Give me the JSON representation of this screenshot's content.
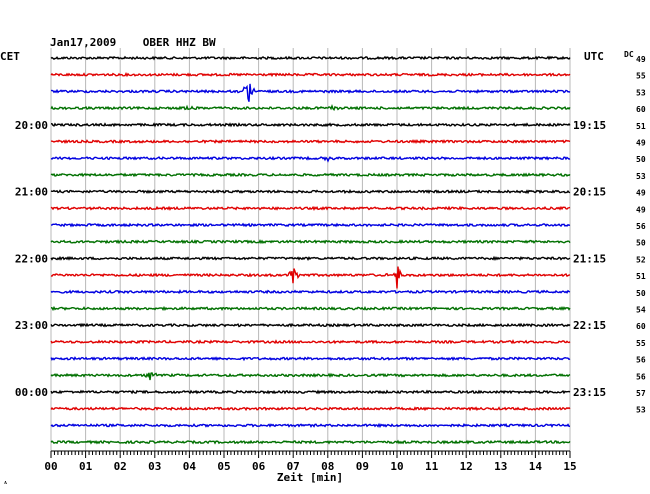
{
  "header": {
    "title": "Jan17,2009    OBER HHZ BW",
    "left_zone": "CET",
    "right_zone": "UTC",
    "dc_label": "DC"
  },
  "chart_data": {
    "type": "line",
    "title": "Jan17,2009    OBER HHZ BW",
    "xlabel": "Zeit [min]",
    "ylabel": "",
    "xlim": [
      0,
      15
    ],
    "x_ticks": [
      "00",
      "01",
      "02",
      "03",
      "04",
      "05",
      "06",
      "07",
      "08",
      "09",
      "10",
      "11",
      "12",
      "13",
      "14",
      "15"
    ],
    "trace_count": 24,
    "trace_colors": [
      "#000000",
      "#e00000",
      "#0000e0",
      "#007000"
    ],
    "left_time_labels": [
      {
        "trace": 4,
        "label": "20:00"
      },
      {
        "trace": 8,
        "label": "21:00"
      },
      {
        "trace": 12,
        "label": "22:00"
      },
      {
        "trace": 16,
        "label": "23:00"
      },
      {
        "trace": 20,
        "label": "00:00"
      }
    ],
    "right_time_labels": [
      {
        "trace": 4,
        "label": "19:15"
      },
      {
        "trace": 8,
        "label": "20:15"
      },
      {
        "trace": 12,
        "label": "21:15"
      },
      {
        "trace": 16,
        "label": "22:15"
      },
      {
        "trace": 20,
        "label": "23:15"
      }
    ],
    "dc_values": [
      "49",
      "55",
      "53",
      "60",
      "51",
      "49",
      "50",
      "53",
      "49",
      "49",
      "56",
      "50",
      "52",
      "51",
      "50",
      "54",
      "60",
      "55",
      "56",
      "56",
      "57",
      "53"
    ],
    "events": [
      {
        "trace": 2,
        "minute": 5.7,
        "amplitude": 0.9
      },
      {
        "trace": 3,
        "minute": 4.0,
        "amplitude": 0.15
      },
      {
        "trace": 3,
        "minute": 8.1,
        "amplitude": 0.15
      },
      {
        "trace": 6,
        "minute": 8.0,
        "amplitude": 0.15
      },
      {
        "trace": 13,
        "minute": 7.0,
        "amplitude": 0.6
      },
      {
        "trace": 13,
        "minute": 10.0,
        "amplitude": 0.9
      },
      {
        "trace": 16,
        "minute": 5.4,
        "amplitude": 0.12
      },
      {
        "trace": 19,
        "minute": 2.9,
        "amplitude": 0.45
      }
    ]
  }
}
